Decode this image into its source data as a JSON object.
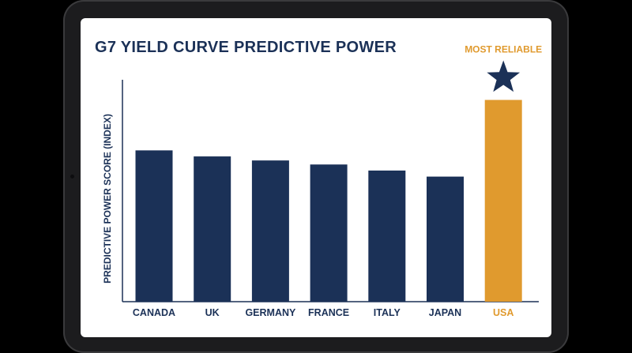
{
  "colors": {
    "primary": "#1b3157",
    "highlight": "#e09a2e",
    "screen_bg": "#ffffff",
    "frame": "#1c1c1e"
  },
  "chart_data": {
    "type": "bar",
    "title": "G7 YIELD CURVE PREDICTIVE POWER",
    "xlabel": "",
    "ylabel": "PREDICTIVE POWER SCORE (INDEX)",
    "categories": [
      "CANADA",
      "UK",
      "GERMANY",
      "FRANCE",
      "ITALY",
      "JAPAN",
      "USA"
    ],
    "values": [
      7.5,
      7.2,
      7.0,
      6.8,
      6.5,
      6.2,
      10.0
    ],
    "ylim": [
      0,
      11
    ],
    "highlight_category": "USA",
    "annotation": {
      "text": "MOST RELIABLE",
      "icon": "star-icon",
      "target": "USA"
    },
    "grid": false,
    "legend": "none"
  }
}
